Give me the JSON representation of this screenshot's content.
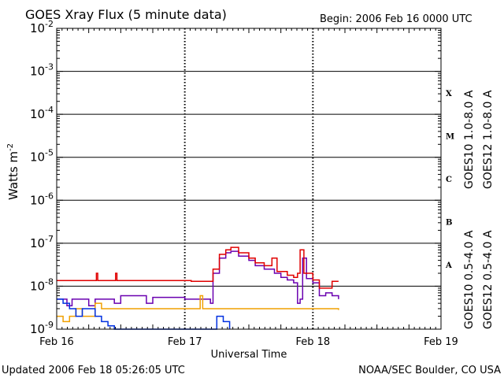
{
  "chart_data": {
    "type": "line",
    "title": "GOES Xray Flux (5 minute data)",
    "begin_label": "Begin:  2006 Feb 16 0000 UTC",
    "xlabel": "Universal Time",
    "ylabel": "Watts m",
    "ylabel_exp": "-2",
    "y_scale": "log",
    "ylim": [
      1e-09,
      0.01
    ],
    "x_ticks": [
      "Feb 16",
      "Feb 17",
      "Feb 18",
      "Feb 19"
    ],
    "x_range_days": [
      0,
      3
    ],
    "y_tick_base": "10",
    "y_tick_exponents": [
      "-9",
      "-8",
      "-7",
      "-6",
      "-5",
      "-4",
      "-3",
      "-2"
    ],
    "flare_classes": [
      "A",
      "B",
      "C",
      "M",
      "X"
    ],
    "grid": "horizontal at each decade",
    "legend": "right side, vertical",
    "footer_left": "Updated 2006 Feb 18 05:26:05 UTC",
    "footer_right": "NOAA/SEC Boulder, CO USA",
    "series": [
      {
        "name": "GOES10 1.0-8.0 A",
        "color": "#6a00b0",
        "points": [
          [
            0,
            5e-09
          ],
          [
            0.05,
            5e-09
          ],
          [
            0.08,
            3.5e-09
          ],
          [
            0.12,
            5e-09
          ],
          [
            0.2,
            5e-09
          ],
          [
            0.25,
            3.5e-09
          ],
          [
            0.3,
            5e-09
          ],
          [
            0.4,
            5e-09
          ],
          [
            0.45,
            4e-09
          ],
          [
            0.5,
            6e-09
          ],
          [
            0.6,
            6e-09
          ],
          [
            0.7,
            4e-09
          ],
          [
            0.75,
            5.5e-09
          ],
          [
            0.9,
            5.5e-09
          ],
          [
            1.0,
            5e-09
          ],
          [
            1.1,
            5e-09
          ],
          [
            1.15,
            5e-09
          ],
          [
            1.2,
            4e-09
          ],
          [
            1.22,
            2e-08
          ],
          [
            1.27,
            4.5e-08
          ],
          [
            1.32,
            6e-08
          ],
          [
            1.36,
            6.5e-08
          ],
          [
            1.42,
            5e-08
          ],
          [
            1.5,
            4e-08
          ],
          [
            1.55,
            3e-08
          ],
          [
            1.62,
            2.5e-08
          ],
          [
            1.7,
            2e-08
          ],
          [
            1.75,
            1.6e-08
          ],
          [
            1.8,
            1.4e-08
          ],
          [
            1.85,
            1.2e-08
          ],
          [
            1.88,
            4e-09
          ],
          [
            1.9,
            5e-09
          ],
          [
            1.92,
            4.5e-08
          ],
          [
            1.95,
            1.5e-08
          ],
          [
            2.0,
            1.2e-08
          ],
          [
            2.05,
            6e-09
          ],
          [
            2.1,
            7e-09
          ],
          [
            2.15,
            6e-09
          ],
          [
            2.2,
            5e-09
          ]
        ]
      },
      {
        "name": "GOES12 1.0-8.0 A",
        "color": "#e00000",
        "points": [
          [
            0,
            1.35e-08
          ],
          [
            0.3,
            1.35e-08
          ],
          [
            0.31,
            2e-08
          ],
          [
            0.32,
            1.35e-08
          ],
          [
            0.45,
            1.35e-08
          ],
          [
            0.46,
            2e-08
          ],
          [
            0.47,
            1.35e-08
          ],
          [
            1.0,
            1.35e-08
          ],
          [
            1.05,
            1.3e-08
          ],
          [
            1.2,
            1.3e-08
          ],
          [
            1.22,
            2.5e-08
          ],
          [
            1.27,
            5.5e-08
          ],
          [
            1.32,
            7e-08
          ],
          [
            1.36,
            8e-08
          ],
          [
            1.42,
            6e-08
          ],
          [
            1.5,
            4.5e-08
          ],
          [
            1.55,
            3.5e-08
          ],
          [
            1.62,
            3e-08
          ],
          [
            1.68,
            4.5e-08
          ],
          [
            1.72,
            2.2e-08
          ],
          [
            1.8,
            1.8e-08
          ],
          [
            1.85,
            1.6e-08
          ],
          [
            1.88,
            2e-08
          ],
          [
            1.9,
            7e-08
          ],
          [
            1.93,
            2e-08
          ],
          [
            2.0,
            1.4e-08
          ],
          [
            2.05,
            9e-09
          ],
          [
            2.1,
            9e-09
          ],
          [
            2.15,
            1.3e-08
          ],
          [
            2.2,
            1.3e-08
          ]
        ]
      },
      {
        "name": "GOES10 0.5-4.0 A",
        "color": "#f0a000",
        "points": [
          [
            0,
            2e-09
          ],
          [
            0.05,
            1.5e-09
          ],
          [
            0.1,
            2e-09
          ],
          [
            0.15,
            3e-09
          ],
          [
            0.2,
            2e-09
          ],
          [
            0.3,
            4e-09
          ],
          [
            0.35,
            3e-09
          ],
          [
            0.4,
            3e-09
          ],
          [
            0.5,
            3e-09
          ],
          [
            1.0,
            3e-09
          ],
          [
            1.1,
            3e-09
          ],
          [
            1.12,
            6e-09
          ],
          [
            1.14,
            3e-09
          ],
          [
            1.2,
            3e-09
          ],
          [
            1.5,
            3e-09
          ],
          [
            2.0,
            3e-09
          ],
          [
            2.2,
            2.8e-09
          ]
        ]
      },
      {
        "name": "GOES12 0.5-4.0 A",
        "color": "#0030e0",
        "points": [
          [
            0,
            5e-09
          ],
          [
            0.05,
            4e-09
          ],
          [
            0.1,
            3e-09
          ],
          [
            0.15,
            2e-09
          ],
          [
            0.2,
            3e-09
          ],
          [
            0.3,
            2e-09
          ],
          [
            0.35,
            1.5e-09
          ],
          [
            0.4,
            1.2e-09
          ],
          [
            0.45,
            1e-09
          ],
          [
            1.2,
            1e-09
          ],
          [
            1.25,
            2e-09
          ],
          [
            1.3,
            1.5e-09
          ],
          [
            1.35,
            1e-09
          ]
        ]
      }
    ]
  }
}
